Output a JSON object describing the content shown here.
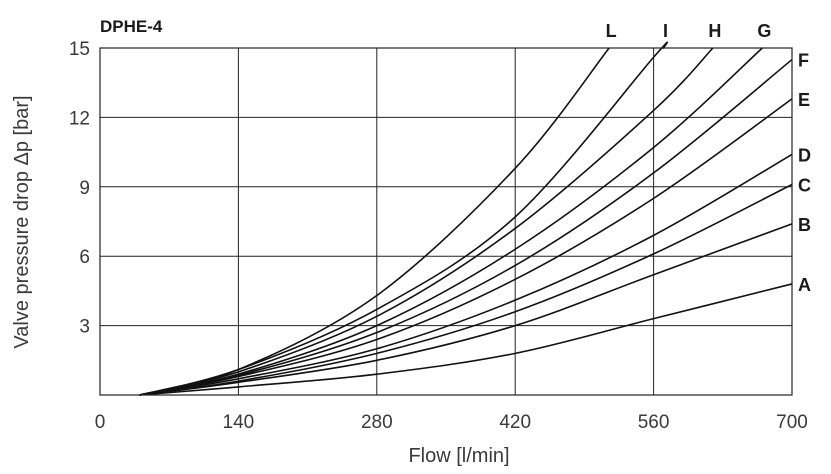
{
  "chart_data": {
    "type": "line",
    "title": "DPHE-4",
    "xlabel": "Flow [l/min]",
    "ylabel": "Valve pressure drop  Δp [bar]",
    "xlim": [
      0,
      700
    ],
    "ylim": [
      0,
      15
    ],
    "xticks": [
      "0",
      "140",
      "280",
      "420",
      "560",
      "700"
    ],
    "yticks": [
      "3",
      "6",
      "9",
      "12",
      "15"
    ],
    "grid": true,
    "series": [
      {
        "name": "A",
        "x": [
          40,
          140,
          280,
          420,
          560,
          700
        ],
        "y": [
          0,
          0.35,
          0.9,
          1.8,
          3.3,
          4.8
        ]
      },
      {
        "name": "B",
        "x": [
          40,
          140,
          280,
          420,
          560,
          700
        ],
        "y": [
          0,
          0.55,
          1.5,
          3.0,
          5.2,
          7.4
        ]
      },
      {
        "name": "C",
        "x": [
          40,
          140,
          280,
          420,
          560,
          700
        ],
        "y": [
          0,
          0.6,
          1.8,
          3.6,
          6.1,
          9.1
        ]
      },
      {
        "name": "D",
        "x": [
          40,
          140,
          280,
          420,
          560,
          700
        ],
        "y": [
          0,
          0.7,
          2.0,
          4.1,
          6.9,
          10.4
        ]
      },
      {
        "name": "E",
        "x": [
          40,
          140,
          280,
          420,
          560,
          700
        ],
        "y": [
          0,
          0.8,
          2.4,
          5.0,
          8.5,
          12.8
        ]
      },
      {
        "name": "F",
        "x": [
          40,
          140,
          280,
          420,
          560,
          700
        ],
        "y": [
          0,
          0.85,
          2.7,
          5.6,
          9.6,
          14.5
        ]
      },
      {
        "name": "G",
        "x": [
          40,
          140,
          280,
          420,
          560,
          670
        ],
        "y": [
          0,
          0.9,
          3.0,
          6.3,
          10.7,
          15
        ]
      },
      {
        "name": "H",
        "x": [
          40,
          140,
          280,
          420,
          560,
          620
        ],
        "y": [
          0,
          1.0,
          3.4,
          7.2,
          12.3,
          15
        ]
      },
      {
        "name": "I",
        "x": [
          40,
          140,
          280,
          420,
          560,
          570
        ],
        "y": [
          0,
          1.1,
          3.7,
          7.7,
          14.6,
          15
        ]
      },
      {
        "name": "L",
        "x": [
          40,
          140,
          280,
          420,
          515
        ],
        "y": [
          0,
          1.1,
          4.3,
          9.8,
          15
        ]
      }
    ]
  }
}
